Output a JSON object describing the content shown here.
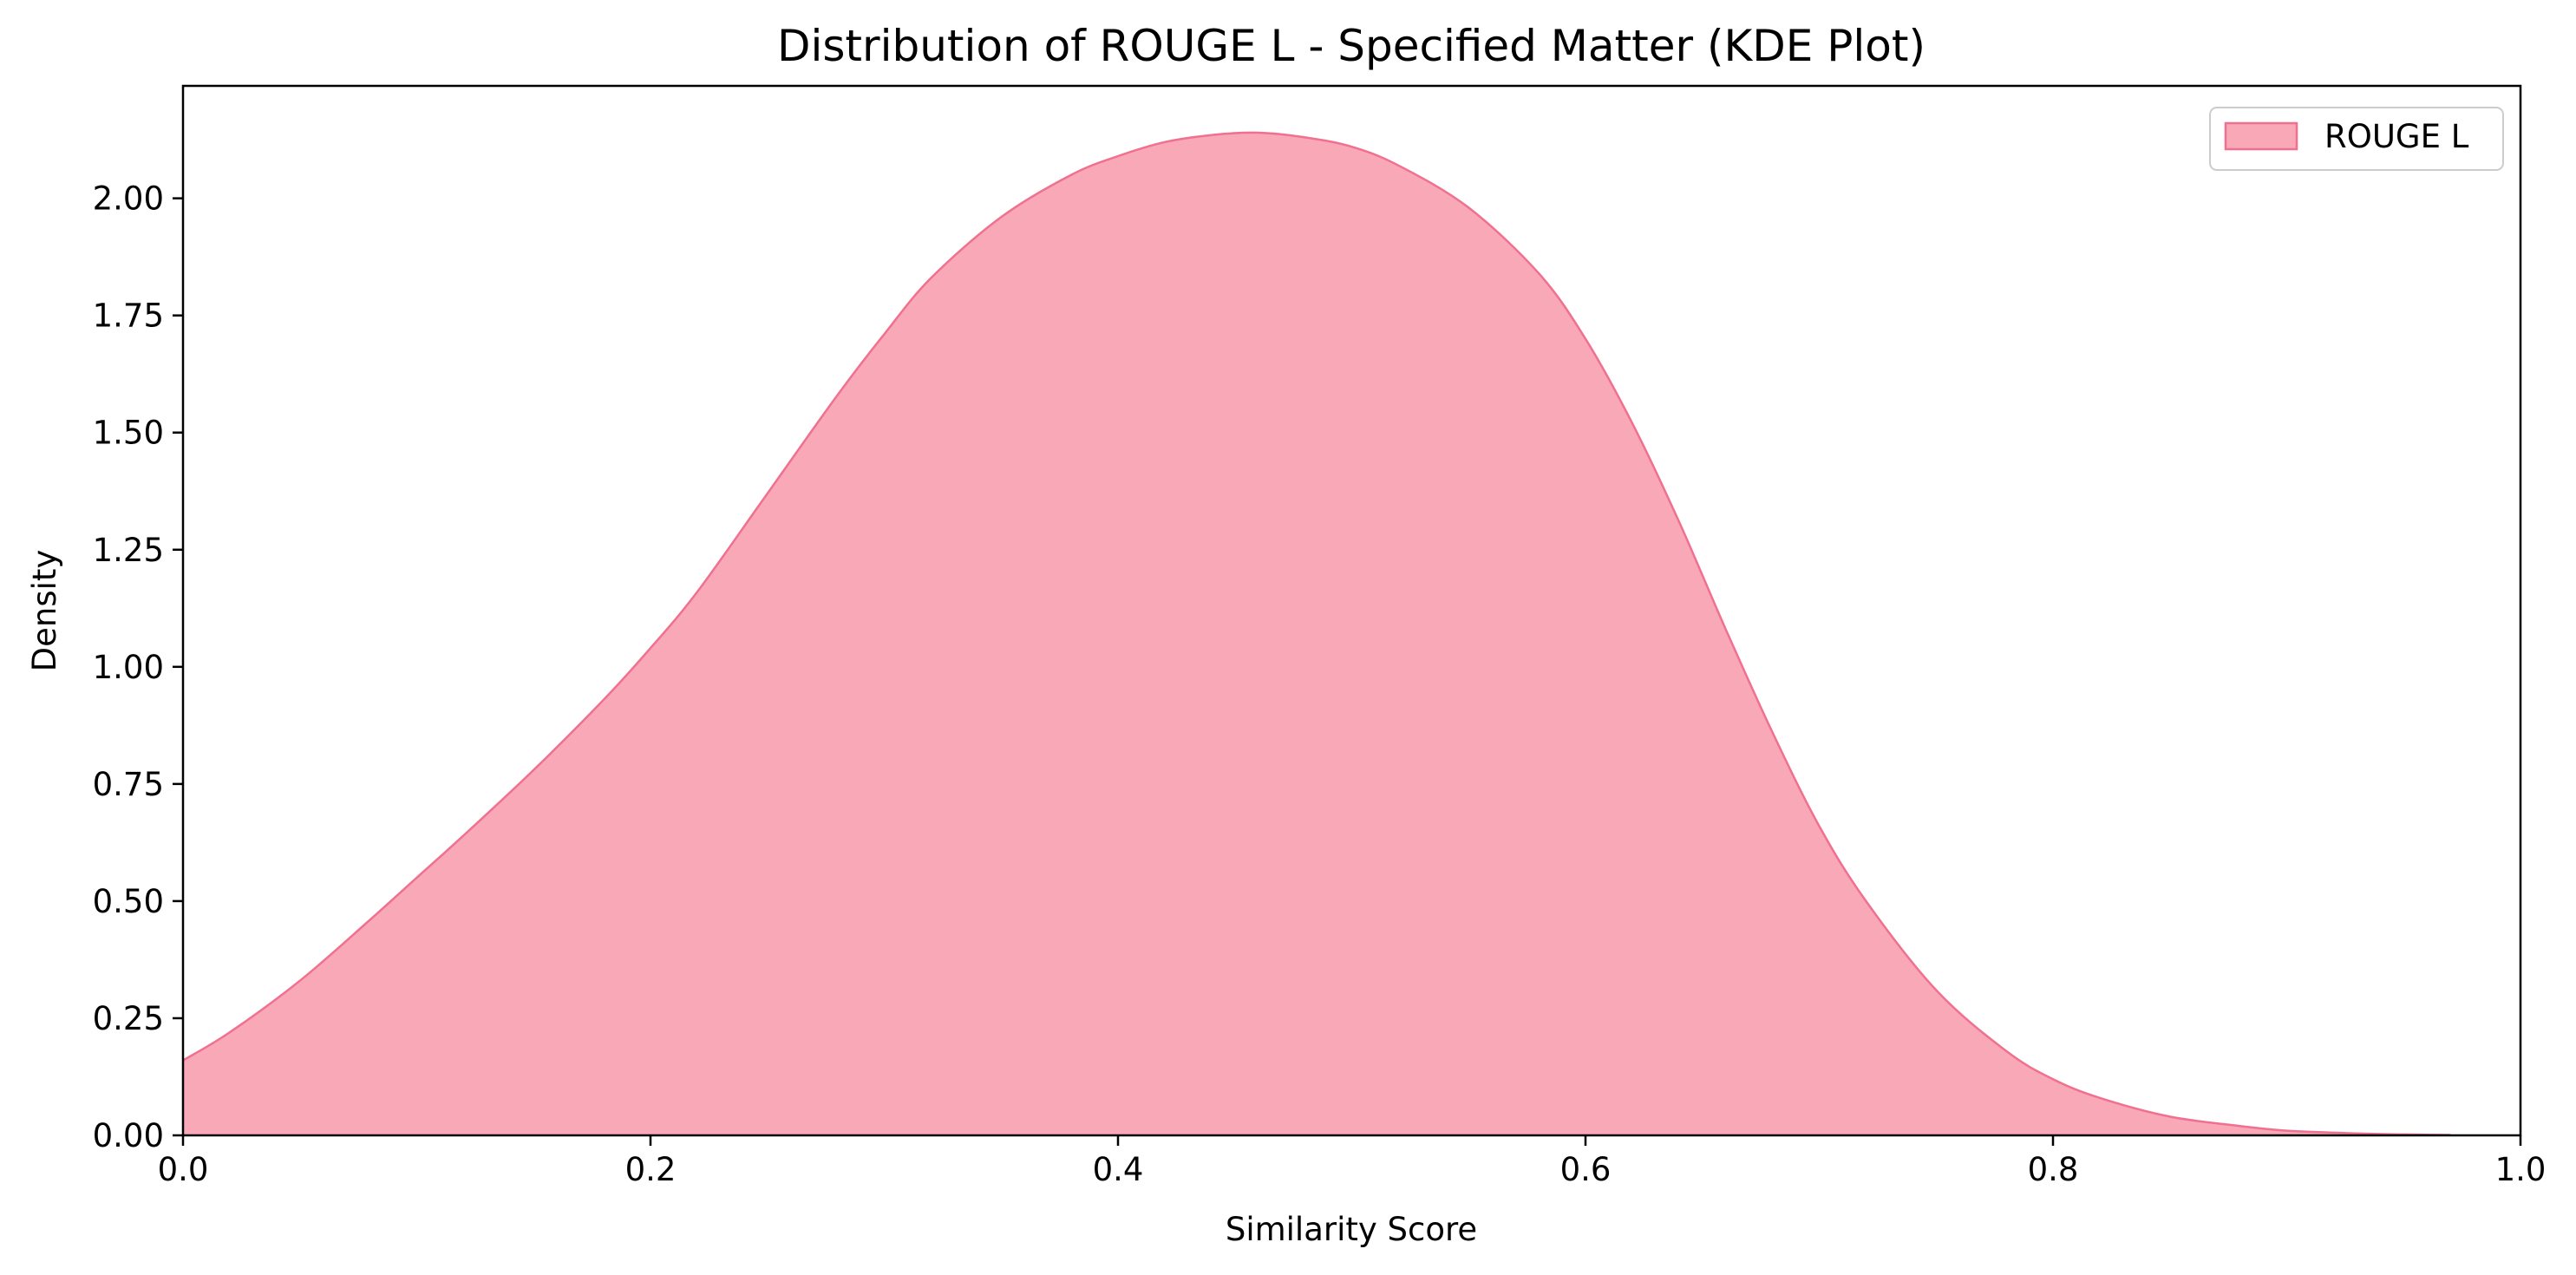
{
  "chart_data": {
    "type": "area",
    "title": "Distribution of ROUGE L - Specified Matter (KDE Plot)",
    "xlabel": "Similarity Score",
    "ylabel": "Density",
    "xlim": [
      0.0,
      1.0
    ],
    "ylim": [
      0.0,
      2.24
    ],
    "x_ticks": [
      "0.0",
      "0.2",
      "0.4",
      "0.6",
      "0.8",
      "1.0"
    ],
    "y_ticks": [
      "0.00",
      "0.25",
      "0.50",
      "0.75",
      "1.00",
      "1.25",
      "1.50",
      "1.75",
      "2.00"
    ],
    "grid": false,
    "legend_position": "top-right",
    "series": [
      {
        "name": "ROUGE L",
        "fill_color": "#f9a8b8",
        "line_color": "#f0708f",
        "x": [
          0.0,
          0.02,
          0.05,
          0.08,
          0.1,
          0.12,
          0.15,
          0.18,
          0.2,
          0.22,
          0.25,
          0.28,
          0.3,
          0.32,
          0.35,
          0.38,
          0.4,
          0.42,
          0.44,
          0.46,
          0.48,
          0.5,
          0.52,
          0.55,
          0.58,
          0.6,
          0.62,
          0.64,
          0.66,
          0.68,
          0.7,
          0.72,
          0.75,
          0.78,
          0.8,
          0.82,
          0.85,
          0.88,
          0.9,
          0.93,
          0.95,
          0.97
        ],
        "y": [
          0.16,
          0.22,
          0.33,
          0.46,
          0.55,
          0.64,
          0.78,
          0.93,
          1.04,
          1.16,
          1.37,
          1.58,
          1.71,
          1.83,
          1.96,
          2.05,
          2.09,
          2.12,
          2.135,
          2.14,
          2.13,
          2.11,
          2.07,
          1.98,
          1.84,
          1.7,
          1.52,
          1.31,
          1.08,
          0.86,
          0.66,
          0.5,
          0.31,
          0.18,
          0.12,
          0.08,
          0.04,
          0.02,
          0.01,
          0.004,
          0.002,
          0.001
        ]
      }
    ]
  }
}
